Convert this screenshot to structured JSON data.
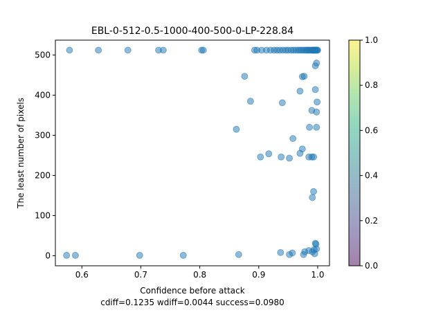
{
  "chart_data": {
    "type": "scatter",
    "title": "EBL-0-512-0.5-1000-400-500-0-LP-228.84",
    "xlabel": "Confidence before attack",
    "xlabel_line2": "cdiff=0.1235 wdiff=0.0044 success=0.0980",
    "ylabel": "The least number of pixels",
    "xlim": [
      0.555,
      1.02
    ],
    "ylim": [
      -25,
      537
    ],
    "xticks": [
      0.6,
      0.7,
      0.8,
      0.9,
      1.0
    ],
    "xtick_labels": [
      "0.6",
      "0.7",
      "0.8",
      "0.9",
      "1.0"
    ],
    "yticks": [
      0,
      100,
      200,
      300,
      400,
      500
    ],
    "ytick_labels": [
      "0",
      "100",
      "200",
      "300",
      "400",
      "500"
    ],
    "grid": false,
    "marker_color": "#1f77b4",
    "marker_alpha": 0.5,
    "colorbar": {
      "ticks": [
        0.0,
        0.2,
        0.4,
        0.6,
        0.8,
        1.0
      ],
      "tick_labels": [
        "0.0",
        "0.2",
        "0.4",
        "0.6",
        "0.8",
        "1.0"
      ],
      "colormap": "viridis",
      "alpha": 0.5
    },
    "points": [
      {
        "x": 0.574,
        "y": 1
      },
      {
        "x": 0.589,
        "y": 1
      },
      {
        "x": 0.698,
        "y": 1
      },
      {
        "x": 0.772,
        "y": 1
      },
      {
        "x": 0.866,
        "y": 3
      },
      {
        "x": 0.937,
        "y": 8
      },
      {
        "x": 0.952,
        "y": 3
      },
      {
        "x": 0.957,
        "y": 7
      },
      {
        "x": 0.976,
        "y": 3
      },
      {
        "x": 0.978,
        "y": 10
      },
      {
        "x": 0.985,
        "y": 13
      },
      {
        "x": 0.991,
        "y": 10
      },
      {
        "x": 0.994,
        "y": 15
      },
      {
        "x": 0.995,
        "y": 5
      },
      {
        "x": 0.996,
        "y": 31
      },
      {
        "x": 0.997,
        "y": 29
      },
      {
        "x": 0.998,
        "y": 17
      },
      {
        "x": 0.991,
        "y": 145
      },
      {
        "x": 0.993,
        "y": 160
      },
      {
        "x": 0.938,
        "y": 246
      },
      {
        "x": 0.952,
        "y": 243
      },
      {
        "x": 0.917,
        "y": 254
      },
      {
        "x": 0.903,
        "y": 246
      },
      {
        "x": 0.97,
        "y": 255
      },
      {
        "x": 0.974,
        "y": 266
      },
      {
        "x": 0.985,
        "y": 246
      },
      {
        "x": 0.99,
        "y": 246
      },
      {
        "x": 0.993,
        "y": 246
      },
      {
        "x": 0.958,
        "y": 292
      },
      {
        "x": 0.862,
        "y": 315
      },
      {
        "x": 0.986,
        "y": 320
      },
      {
        "x": 0.998,
        "y": 320
      },
      {
        "x": 0.99,
        "y": 362
      },
      {
        "x": 0.998,
        "y": 358
      },
      {
        "x": 0.999,
        "y": 383
      },
      {
        "x": 0.94,
        "y": 381
      },
      {
        "x": 0.886,
        "y": 385
      },
      {
        "x": 0.97,
        "y": 410
      },
      {
        "x": 0.996,
        "y": 414
      },
      {
        "x": 0.876,
        "y": 447
      },
      {
        "x": 0.974,
        "y": 446
      },
      {
        "x": 0.977,
        "y": 447
      },
      {
        "x": 0.996,
        "y": 473
      },
      {
        "x": 0.998,
        "y": 480
      },
      {
        "x": 0.579,
        "y": 512
      },
      {
        "x": 0.628,
        "y": 512
      },
      {
        "x": 0.678,
        "y": 512
      },
      {
        "x": 0.73,
        "y": 512
      },
      {
        "x": 0.738,
        "y": 512
      },
      {
        "x": 0.803,
        "y": 512
      },
      {
        "x": 0.806,
        "y": 512
      },
      {
        "x": 0.893,
        "y": 512
      },
      {
        "x": 0.897,
        "y": 512
      },
      {
        "x": 0.905,
        "y": 512
      },
      {
        "x": 0.913,
        "y": 512
      },
      {
        "x": 0.92,
        "y": 512
      },
      {
        "x": 0.926,
        "y": 512
      },
      {
        "x": 0.931,
        "y": 512
      },
      {
        "x": 0.936,
        "y": 512
      },
      {
        "x": 0.941,
        "y": 512
      },
      {
        "x": 0.946,
        "y": 512
      },
      {
        "x": 0.95,
        "y": 512
      },
      {
        "x": 0.955,
        "y": 512
      },
      {
        "x": 0.959,
        "y": 512
      },
      {
        "x": 0.963,
        "y": 512
      },
      {
        "x": 0.967,
        "y": 512
      },
      {
        "x": 0.97,
        "y": 512
      },
      {
        "x": 0.973,
        "y": 512
      },
      {
        "x": 0.976,
        "y": 512
      },
      {
        "x": 0.979,
        "y": 512
      },
      {
        "x": 0.981,
        "y": 512
      },
      {
        "x": 0.983,
        "y": 512
      },
      {
        "x": 0.985,
        "y": 512
      },
      {
        "x": 0.987,
        "y": 512
      },
      {
        "x": 0.989,
        "y": 512
      },
      {
        "x": 0.991,
        "y": 512
      },
      {
        "x": 0.992,
        "y": 512
      },
      {
        "x": 0.993,
        "y": 512
      },
      {
        "x": 0.994,
        "y": 512
      },
      {
        "x": 0.995,
        "y": 512
      },
      {
        "x": 0.996,
        "y": 512
      },
      {
        "x": 0.997,
        "y": 512
      },
      {
        "x": 0.998,
        "y": 512
      },
      {
        "x": 0.999,
        "y": 512
      },
      {
        "x": 1.0,
        "y": 512
      }
    ]
  }
}
